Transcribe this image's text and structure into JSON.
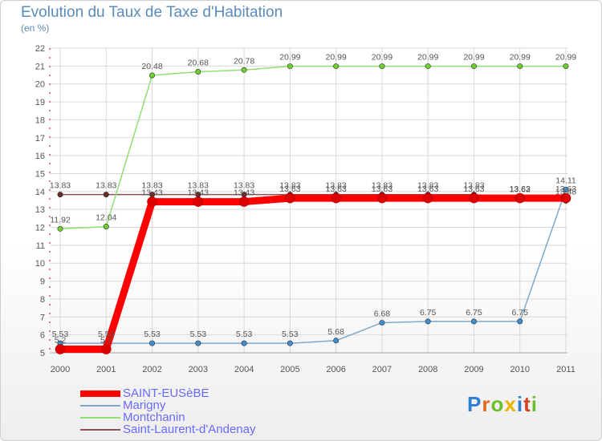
{
  "title": "Evolution du Taux de Taxe d'Habitation",
  "subtitle": "(en %)",
  "brand": "Proxiti",
  "colors": {
    "axis_text": "#555555",
    "grid": "#d8d8d8",
    "axis_red": "#cc0000"
  },
  "chart_data": {
    "type": "line",
    "title": "Evolution du Taux de Taxe d'Habitation",
    "subtitle": "(en %)",
    "x": [
      "2000",
      "2001",
      "2002",
      "2003",
      "2004",
      "2005",
      "2006",
      "2007",
      "2008",
      "2009",
      "2010",
      "2011"
    ],
    "ylim": [
      5,
      22
    ],
    "yticks": [
      "5",
      "6",
      "7",
      "8",
      "9",
      "10",
      "11",
      "12",
      "13",
      "14",
      "15",
      "16",
      "17",
      "18",
      "19",
      "20",
      "21",
      "22"
    ],
    "grid": true,
    "legend_position": "bottom-left",
    "series": [
      {
        "name": "SAINT-EUSèBE",
        "color": "#ff0000",
        "width": 9,
        "marker": "#dd0000",
        "values": [
          5.2,
          5.2,
          13.43,
          13.43,
          13.43,
          13.63,
          13.63,
          13.63,
          13.63,
          13.63,
          13.63,
          13.63
        ],
        "labels": [
          "5.2",
          "5.2",
          "13.43",
          "13.43",
          "13.43",
          "13.63",
          "13.63",
          "13.63",
          "13.63",
          "13.63",
          "13.63",
          "13.63"
        ]
      },
      {
        "name": "Marigny",
        "color": "#7fa7cc",
        "width": 1.5,
        "marker": "#3f8fd0",
        "values": [
          5.53,
          5.53,
          5.53,
          5.53,
          5.53,
          5.53,
          5.68,
          6.68,
          6.75,
          6.75,
          6.75,
          14.11
        ],
        "labels": [
          "5.53",
          "5.53",
          "5.53",
          "5.53",
          "5.53",
          "5.53",
          "5.68",
          "6.68",
          "6.75",
          "6.75",
          "6.75",
          "14.11"
        ]
      },
      {
        "name": "Montchanin",
        "color": "#90e070",
        "width": 1.5,
        "marker": "#6fcf2f",
        "values": [
          11.92,
          12.04,
          20.48,
          20.68,
          20.78,
          20.99,
          20.99,
          20.99,
          20.99,
          20.99,
          20.99,
          20.99
        ],
        "labels": [
          "11.92",
          "12.04",
          "20.48",
          "20.68",
          "20.78",
          "20.99",
          "20.99",
          "20.99",
          "20.99",
          "20.99",
          "20.99",
          "20.99"
        ]
      },
      {
        "name": "Saint-Laurent-d'Andenay",
        "color": "#885555",
        "width": 1.5,
        "marker": "#6a2a2a",
        "values": [
          13.83,
          13.83,
          13.83,
          13.83,
          13.83,
          13.83,
          13.83,
          13.83,
          13.83,
          13.83,
          13.62,
          13.48
        ],
        "labels": [
          "13.83",
          "13.83",
          "13.83",
          "13.83",
          "13.83",
          "13.83",
          "13.83",
          "13.83",
          "13.83",
          "13.83",
          "13.62",
          "13.48"
        ]
      }
    ]
  }
}
